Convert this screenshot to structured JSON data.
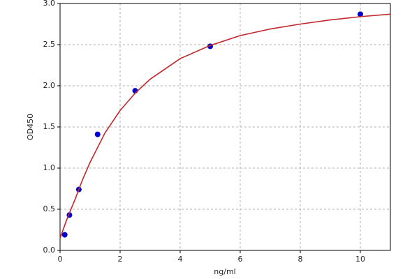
{
  "chart_data": {
    "type": "scatter",
    "xlabel": "ng/ml",
    "ylabel": "OD450",
    "xlim": [
      0,
      11
    ],
    "ylim": [
      0,
      3
    ],
    "xticks": [
      0,
      2,
      4,
      6,
      8,
      10
    ],
    "yticks": [
      {
        "value": 0,
        "label": "0.0"
      },
      {
        "value": 0.5,
        "label": "0.5"
      },
      {
        "value": 1,
        "label": "1.0"
      },
      {
        "value": 1.5,
        "label": "1.5"
      },
      {
        "value": 2,
        "label": "2.0"
      },
      {
        "value": 2.5,
        "label": "2.5"
      },
      {
        "value": 3,
        "label": "3.0"
      }
    ],
    "grid": true,
    "series": [
      {
        "type": "scatter",
        "color": "#0000cc",
        "x": [
          0.156,
          0.312,
          0.625,
          1.25,
          2.5,
          5,
          10
        ],
        "values": [
          0.19,
          0.43,
          0.74,
          1.41,
          1.94,
          2.48,
          2.87
        ]
      },
      {
        "type": "line",
        "color": "#c0282d",
        "x": [
          0,
          0.25,
          0.5,
          0.75,
          1,
          1.5,
          2,
          2.5,
          3,
          4,
          5,
          6,
          7,
          8,
          9,
          10,
          11
        ],
        "values": [
          0.15,
          0.4,
          0.62,
          0.86,
          1.07,
          1.43,
          1.7,
          1.91,
          2.08,
          2.33,
          2.49,
          2.61,
          2.69,
          2.75,
          2.8,
          2.84,
          2.87
        ]
      }
    ]
  }
}
